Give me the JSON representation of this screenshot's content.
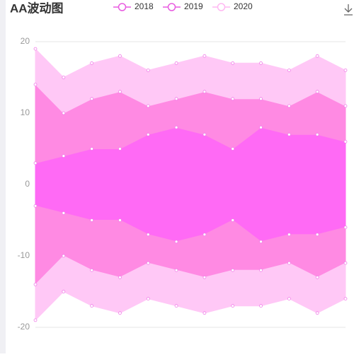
{
  "chart_data": {
    "type": "stream",
    "title": "AA波动图",
    "categories": [
      null,
      null,
      null,
      null,
      null,
      null,
      null,
      null,
      null,
      null,
      null,
      null
    ],
    "series": [
      {
        "name": "2018",
        "color": "#ff6af5",
        "values": [
          3,
          4,
          5,
          5,
          7,
          8,
          7,
          5,
          8,
          7,
          7,
          6
        ]
      },
      {
        "name": "2019",
        "color": "#ff8ae3",
        "values": [
          11,
          6,
          7,
          8,
          4,
          4,
          6,
          7,
          4,
          4,
          6,
          5
        ]
      },
      {
        "name": "2020",
        "color": "#ffc8f6",
        "values": [
          5,
          5,
          5,
          5,
          5,
          5,
          5,
          5,
          5,
          5,
          5,
          5
        ]
      }
    ],
    "ylim": [
      -20,
      20
    ],
    "yticks": [
      -20,
      -10,
      0,
      10,
      20
    ],
    "grid": true
  }
}
